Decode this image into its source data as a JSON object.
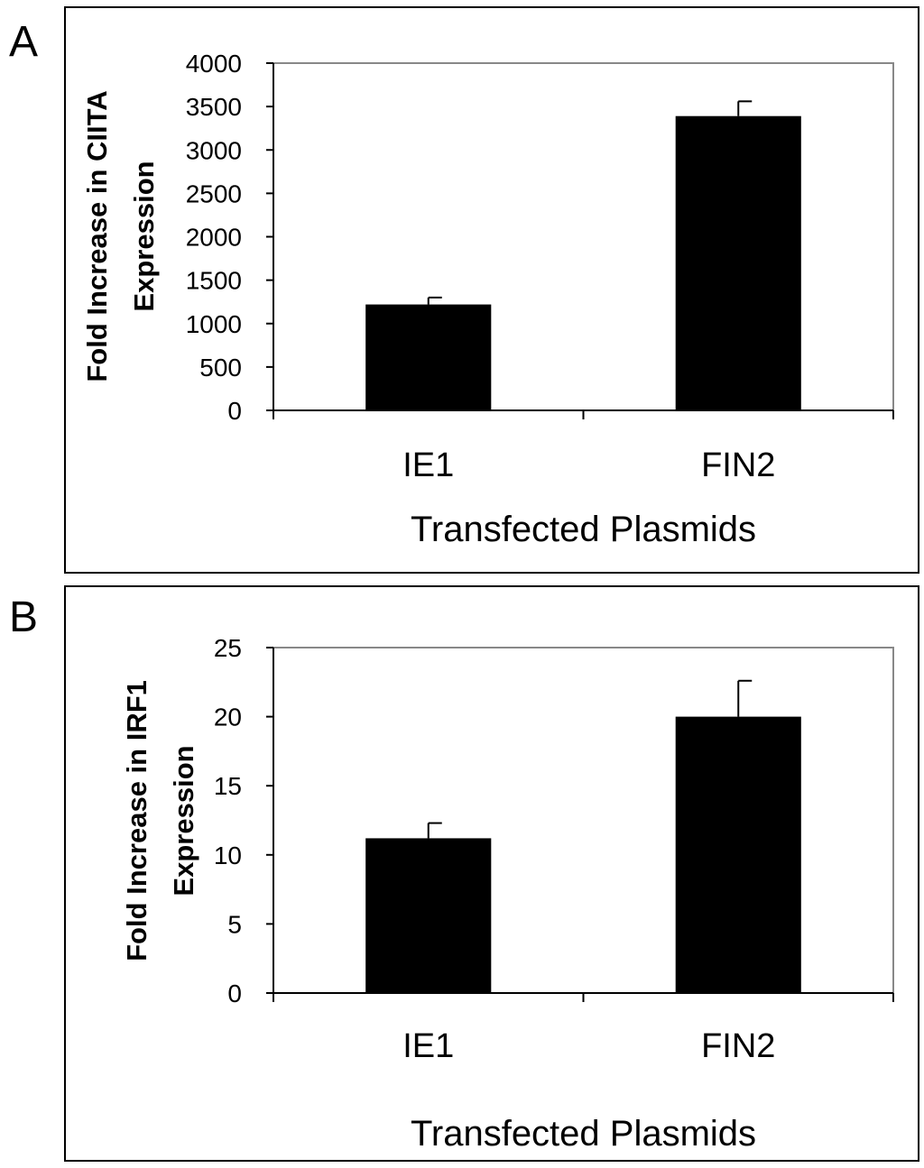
{
  "chart_data": [
    {
      "panel_label": "A",
      "type": "bar",
      "categories": [
        "IE1",
        "FIN2"
      ],
      "values": [
        1220,
        3390
      ],
      "errors": [
        80,
        170
      ],
      "xlabel": "Transfected Plasmids",
      "ylabel_lines": [
        "Fold Increase in CIITA",
        "Expression"
      ],
      "ylim": [
        0,
        4000
      ],
      "yticks": [
        0,
        500,
        1000,
        1500,
        2000,
        2500,
        3000,
        3500,
        4000
      ],
      "bar_color": "#000000",
      "frame_color": "#888888",
      "grid": false
    },
    {
      "panel_label": "B",
      "type": "bar",
      "categories": [
        "IE1",
        "FIN2"
      ],
      "values": [
        11.2,
        20.0
      ],
      "errors": [
        1.1,
        2.6
      ],
      "xlabel": "Transfected Plasmids",
      "ylabel_lines": [
        "Fold Increase in IRF1",
        "Expression"
      ],
      "ylim": [
        0,
        25
      ],
      "yticks": [
        0,
        5,
        10,
        15,
        20,
        25
      ],
      "bar_color": "#000000",
      "frame_color": "#888888",
      "grid": false
    }
  ]
}
